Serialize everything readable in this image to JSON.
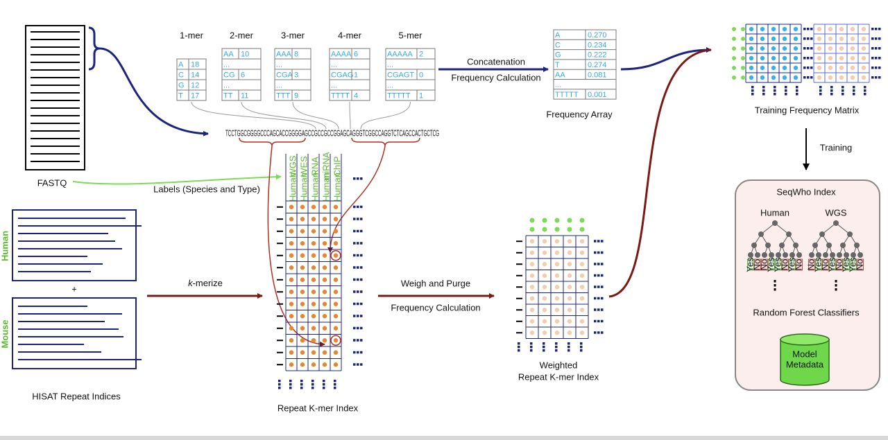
{
  "fastq": {
    "label": "FASTQ"
  },
  "kmer_tables": [
    {
      "title": "1-mer",
      "rows": [
        [
          "A",
          "18"
        ],
        [
          "C",
          "14"
        ],
        [
          "G",
          "12"
        ],
        [
          "T",
          "17"
        ]
      ]
    },
    {
      "title": "2-mer",
      "rows": [
        [
          "AA",
          "10"
        ],
        [
          "..."
        ],
        [
          "CG",
          "6"
        ],
        [
          "..."
        ],
        [
          "TT",
          "11"
        ]
      ]
    },
    {
      "title": "3-mer",
      "rows": [
        [
          "AAA",
          "8"
        ],
        [
          "..."
        ],
        [
          "CGA",
          "3"
        ],
        [
          "..."
        ],
        [
          "TTT",
          "9"
        ]
      ]
    },
    {
      "title": "4-mer",
      "rows": [
        [
          "AAAA",
          "6"
        ],
        [
          "..."
        ],
        [
          "CGAG",
          "1"
        ],
        [
          "..."
        ],
        [
          "TTTT",
          "4"
        ]
      ]
    },
    {
      "title": "5-mer",
      "rows": [
        [
          "AAAAA",
          "2"
        ],
        [
          "..."
        ],
        [
          "CGAGT",
          "0"
        ],
        [
          "..."
        ],
        [
          "TTTTT",
          "1"
        ]
      ]
    }
  ],
  "sequence": "TCCTGGCGGGGCCCAGCACCGGGGAGCCGCCGCCGGAGCAGGGTCGGCCAGGTCTCAGCCACTGCTCG",
  "labels_arrow": "Labels (Species and Type)",
  "hisat": {
    "species": [
      "Human",
      "Mouse"
    ],
    "plus": "+",
    "label": "HISAT Repeat Indices"
  },
  "kmerize": {
    "k": "k",
    "rest": "-merize"
  },
  "repeat_index": {
    "columns": [
      {
        "species": "Human",
        "type": "WGS"
      },
      {
        "species": "Human",
        "type": "WES"
      },
      {
        "species": "Human",
        "type": "RNA"
      },
      {
        "species": "Human",
        "type": "miRNA"
      },
      {
        "species": "Human",
        "type": "ChIP"
      }
    ],
    "label": "Repeat K-mer Index"
  },
  "weigh": {
    "line1": "Weigh and Purge",
    "line2": "Frequency Calculation"
  },
  "concat": {
    "line1": "Concatenation",
    "line2": "Frequency Calculation"
  },
  "frequency_array": {
    "rows": [
      [
        "A",
        "0.270"
      ],
      [
        "C",
        "0.234"
      ],
      [
        "G",
        "0.222"
      ],
      [
        "T",
        "0.274"
      ],
      [
        "AA",
        "0.081"
      ],
      [
        "..."
      ],
      [
        "TTTTT",
        "0.001"
      ]
    ],
    "label": "Frequency Array"
  },
  "weighted_index": {
    "label_lines": [
      "Weighted",
      "Repeat K-mer Index"
    ]
  },
  "training_matrix": {
    "label": "Training Frequency Matrix"
  },
  "training": "Training",
  "seqwho": {
    "title": "SeqWho Index",
    "yes_label": "Yes",
    "no_label": "No",
    "trees": [
      {
        "label": "Human",
        "leaves": [
          true,
          false,
          false,
          true,
          true,
          false,
          true,
          false
        ]
      },
      {
        "label": "WGS",
        "leaves": [
          false,
          true,
          false,
          true,
          false,
          true,
          true,
          false
        ]
      }
    ],
    "classifier_label": "Random Forest Classifiers",
    "model_lines": [
      "Model",
      "Metadata"
    ]
  }
}
